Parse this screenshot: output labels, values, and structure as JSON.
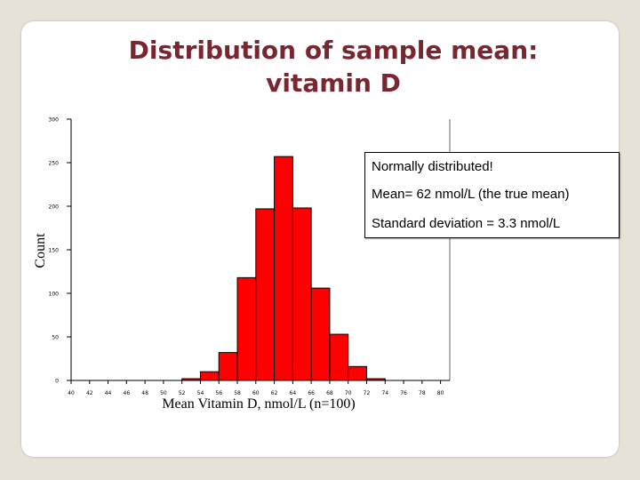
{
  "slide": {
    "title_line1": "Distribution of sample mean:",
    "title_line2": "vitamin D"
  },
  "callout": {
    "line1": "Normally distributed!",
    "line2": "Mean= 62 nmol/L (the true mean)",
    "line3": "Standard deviation = 3.3 nmol/L"
  },
  "chart_data": {
    "type": "bar",
    "title": "",
    "xlabel": "Mean Vitamin D, nmol/L (n=100)",
    "ylabel": "Count",
    "ylim": [
      0,
      300
    ],
    "y_ticks": [
      "0",
      "50",
      "100",
      "150",
      "200",
      "250",
      "300"
    ],
    "x_ticks": [
      "40",
      "42",
      "44",
      "46",
      "48",
      "50",
      "52",
      "54",
      "56",
      "58",
      "60",
      "62",
      "64",
      "66",
      "68",
      "70",
      "72",
      "74",
      "76",
      "78",
      "80"
    ],
    "categories": [
      "40",
      "42",
      "44",
      "46",
      "48",
      "50",
      "52",
      "54",
      "56",
      "58",
      "60",
      "62",
      "64",
      "66",
      "68",
      "70",
      "72",
      "74",
      "76",
      "78"
    ],
    "values": [
      0,
      0,
      0,
      0,
      0,
      0,
      2,
      10,
      32,
      118,
      197,
      257,
      198,
      106,
      53,
      16,
      2,
      0,
      0,
      0
    ],
    "bar_color": "#ff0000",
    "grid": false,
    "legend": "none"
  }
}
